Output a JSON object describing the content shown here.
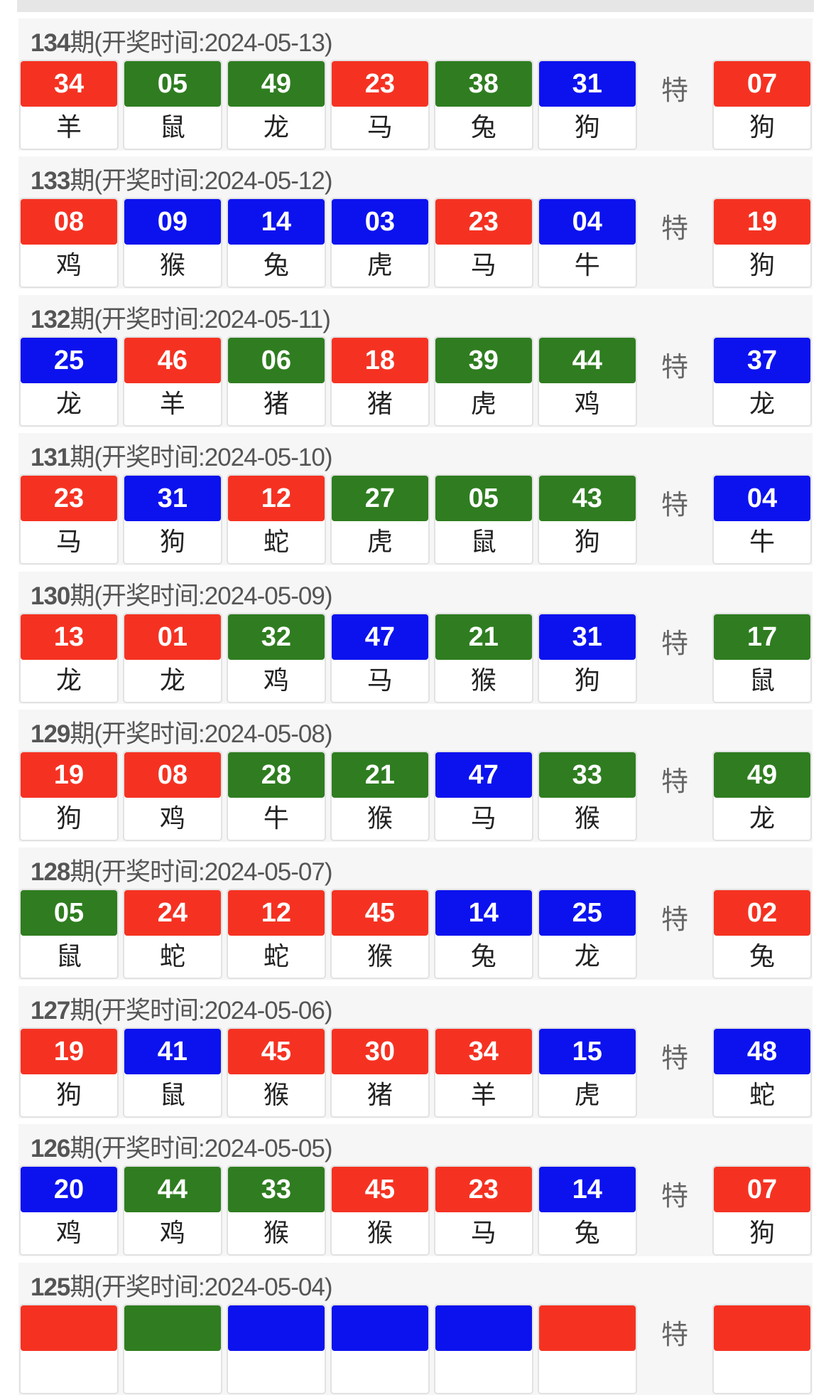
{
  "colors": {
    "red": "#f53222",
    "green": "#2f7d20",
    "blue": "#0c12ee"
  },
  "special_label": "特",
  "draws": [
    {
      "period": "134",
      "label": "期(开奖时间:2024-05-13)",
      "balls": [
        [
          "34",
          "羊",
          "red"
        ],
        [
          "05",
          "鼠",
          "green"
        ],
        [
          "49",
          "龙",
          "green"
        ],
        [
          "23",
          "马",
          "red"
        ],
        [
          "38",
          "兔",
          "green"
        ],
        [
          "31",
          "狗",
          "blue"
        ]
      ],
      "special": [
        "07",
        "狗",
        "red"
      ]
    },
    {
      "period": "133",
      "label": "期(开奖时间:2024-05-12)",
      "balls": [
        [
          "08",
          "鸡",
          "red"
        ],
        [
          "09",
          "猴",
          "blue"
        ],
        [
          "14",
          "兔",
          "blue"
        ],
        [
          "03",
          "虎",
          "blue"
        ],
        [
          "23",
          "马",
          "red"
        ],
        [
          "04",
          "牛",
          "blue"
        ]
      ],
      "special": [
        "19",
        "狗",
        "red"
      ]
    },
    {
      "period": "132",
      "label": "期(开奖时间:2024-05-11)",
      "balls": [
        [
          "25",
          "龙",
          "blue"
        ],
        [
          "46",
          "羊",
          "red"
        ],
        [
          "06",
          "猪",
          "green"
        ],
        [
          "18",
          "猪",
          "red"
        ],
        [
          "39",
          "虎",
          "green"
        ],
        [
          "44",
          "鸡",
          "green"
        ]
      ],
      "special": [
        "37",
        "龙",
        "blue"
      ]
    },
    {
      "period": "131",
      "label": "期(开奖时间:2024-05-10)",
      "balls": [
        [
          "23",
          "马",
          "red"
        ],
        [
          "31",
          "狗",
          "blue"
        ],
        [
          "12",
          "蛇",
          "red"
        ],
        [
          "27",
          "虎",
          "green"
        ],
        [
          "05",
          "鼠",
          "green"
        ],
        [
          "43",
          "狗",
          "green"
        ]
      ],
      "special": [
        "04",
        "牛",
        "blue"
      ]
    },
    {
      "period": "130",
      "label": "期(开奖时间:2024-05-09)",
      "balls": [
        [
          "13",
          "龙",
          "red"
        ],
        [
          "01",
          "龙",
          "red"
        ],
        [
          "32",
          "鸡",
          "green"
        ],
        [
          "47",
          "马",
          "blue"
        ],
        [
          "21",
          "猴",
          "green"
        ],
        [
          "31",
          "狗",
          "blue"
        ]
      ],
      "special": [
        "17",
        "鼠",
        "green"
      ]
    },
    {
      "period": "129",
      "label": "期(开奖时间:2024-05-08)",
      "balls": [
        [
          "19",
          "狗",
          "red"
        ],
        [
          "08",
          "鸡",
          "red"
        ],
        [
          "28",
          "牛",
          "green"
        ],
        [
          "21",
          "猴",
          "green"
        ],
        [
          "47",
          "马",
          "blue"
        ],
        [
          "33",
          "猴",
          "green"
        ]
      ],
      "special": [
        "49",
        "龙",
        "green"
      ]
    },
    {
      "period": "128",
      "label": "期(开奖时间:2024-05-07)",
      "balls": [
        [
          "05",
          "鼠",
          "green"
        ],
        [
          "24",
          "蛇",
          "red"
        ],
        [
          "12",
          "蛇",
          "red"
        ],
        [
          "45",
          "猴",
          "red"
        ],
        [
          "14",
          "兔",
          "blue"
        ],
        [
          "25",
          "龙",
          "blue"
        ]
      ],
      "special": [
        "02",
        "兔",
        "red"
      ]
    },
    {
      "period": "127",
      "label": "期(开奖时间:2024-05-06)",
      "balls": [
        [
          "19",
          "狗",
          "red"
        ],
        [
          "41",
          "鼠",
          "blue"
        ],
        [
          "45",
          "猴",
          "red"
        ],
        [
          "30",
          "猪",
          "red"
        ],
        [
          "34",
          "羊",
          "red"
        ],
        [
          "15",
          "虎",
          "blue"
        ]
      ],
      "special": [
        "48",
        "蛇",
        "blue"
      ]
    },
    {
      "period": "126",
      "label": "期(开奖时间:2024-05-05)",
      "balls": [
        [
          "20",
          "鸡",
          "blue"
        ],
        [
          "44",
          "鸡",
          "green"
        ],
        [
          "33",
          "猴",
          "green"
        ],
        [
          "45",
          "猴",
          "red"
        ],
        [
          "23",
          "马",
          "red"
        ],
        [
          "14",
          "兔",
          "blue"
        ]
      ],
      "special": [
        "07",
        "狗",
        "red"
      ]
    },
    {
      "period": "125",
      "label": "期(开奖时间:2024-05-04)",
      "balls": [
        [
          "",
          "",
          "red"
        ],
        [
          "",
          "",
          "green"
        ],
        [
          "",
          "",
          "blue"
        ],
        [
          "",
          "",
          "blue"
        ],
        [
          "",
          "",
          "blue"
        ],
        [
          "",
          "",
          "red"
        ]
      ],
      "special": [
        "",
        "",
        "red"
      ]
    }
  ]
}
